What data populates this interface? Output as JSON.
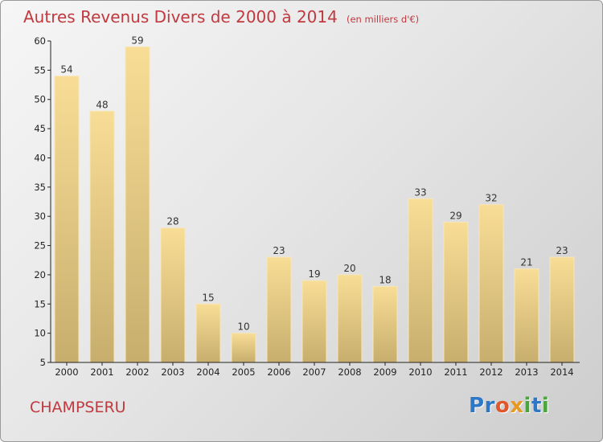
{
  "title": "Autres Revenus Divers de 2000 à 2014",
  "unit": "(en milliers d'€)",
  "commune": "CHAMPSERU",
  "logo_text": "Proxiti",
  "colors": {
    "title": "#c0393f",
    "bar_top": "#f8dd96",
    "bar_bottom": "#c7ae6d",
    "axis": "#222222"
  },
  "chart_data": {
    "type": "bar",
    "categories": [
      "2000",
      "2001",
      "2002",
      "2003",
      "2004",
      "2005",
      "2006",
      "2007",
      "2008",
      "2009",
      "2010",
      "2011",
      "2012",
      "2013",
      "2014"
    ],
    "values": [
      54,
      48,
      59,
      28,
      15,
      10,
      23,
      19,
      20,
      18,
      33,
      29,
      32,
      21,
      23
    ],
    "ylim": [
      5,
      60
    ],
    "yticks": [
      5,
      10,
      15,
      20,
      25,
      30,
      35,
      40,
      45,
      50,
      55,
      60
    ],
    "grid": false,
    "data_labels": true
  }
}
